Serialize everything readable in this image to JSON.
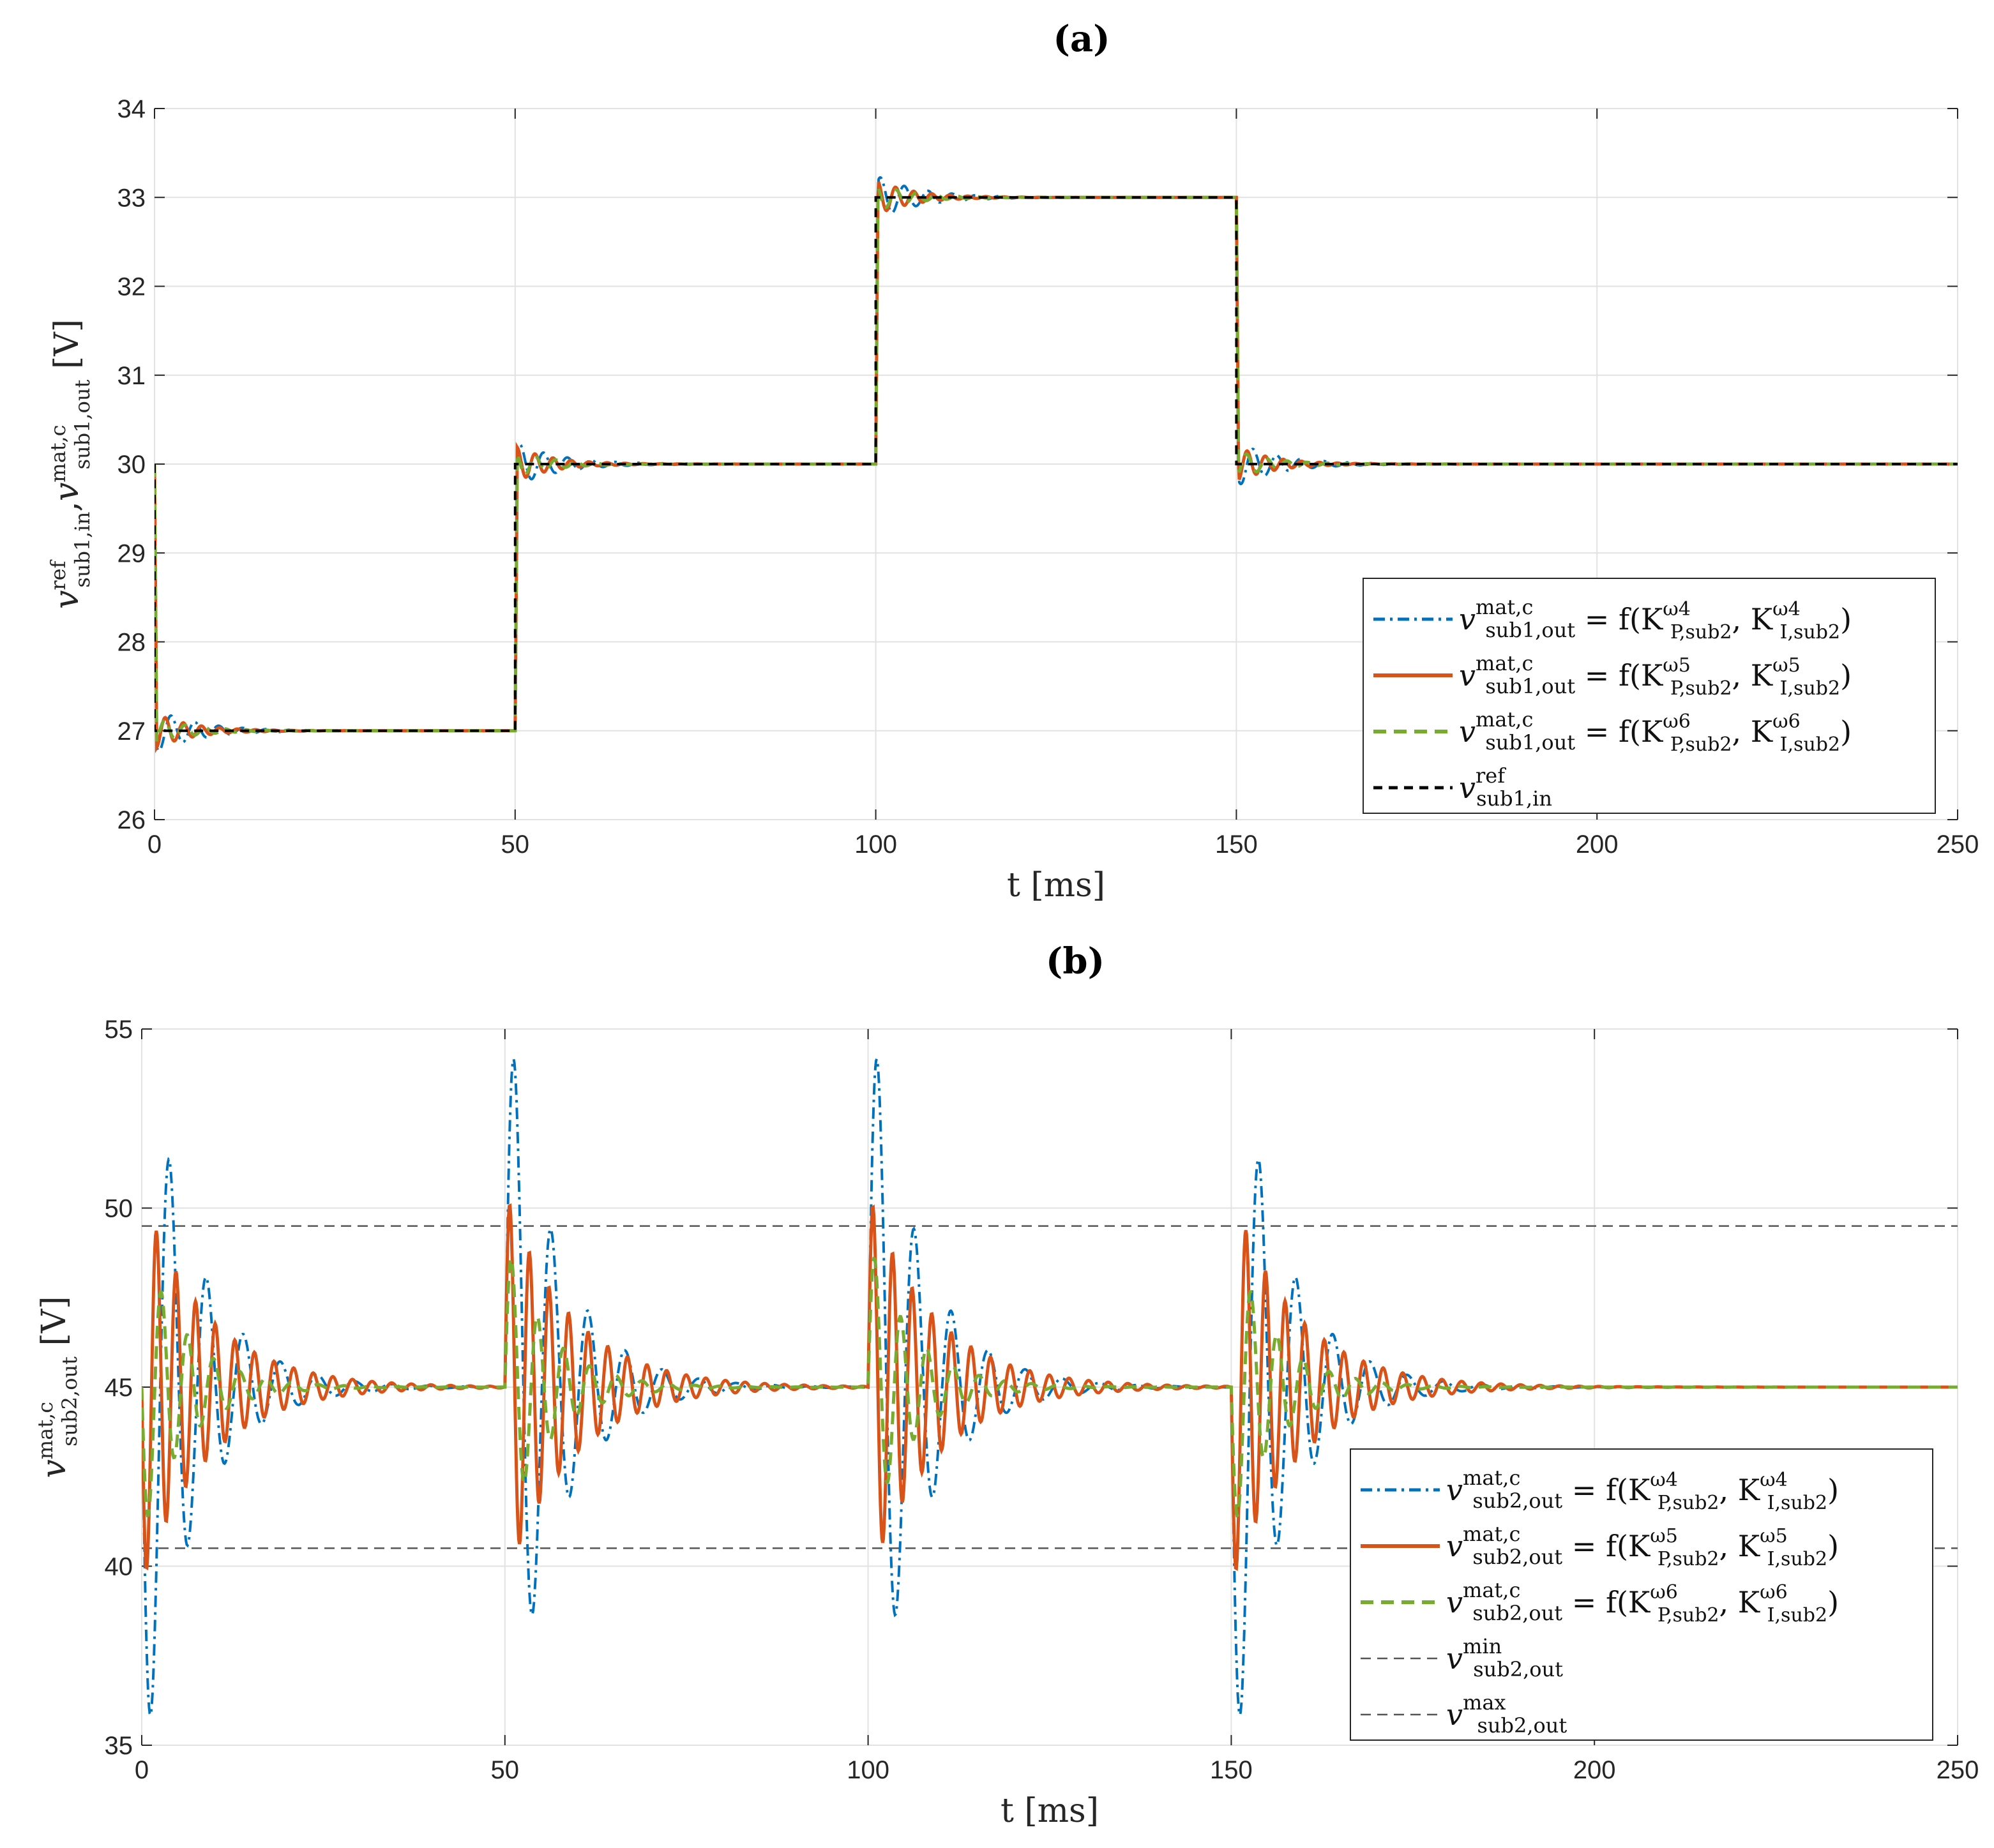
{
  "chart_data": [
    {
      "type": "line",
      "panel_label": "(a)",
      "xlabel": "t [ms]",
      "ylabel": "v_ref_sub1,in, v_mat,c_sub1,out [V]",
      "ylabel_parts": {
        "main": "v",
        "sup1": "ref",
        "sub1": "sub1,in",
        "sep": ",",
        "sup2": "mat,c",
        "sub2": "sub1,out",
        "unit": "[V]"
      },
      "xlim": [
        0,
        250
      ],
      "ylim": [
        26,
        34
      ],
      "xticks": [
        "0",
        "50",
        "100",
        "150",
        "200",
        "250"
      ],
      "yticks": [
        "26",
        "27",
        "28",
        "29",
        "30",
        "31",
        "32",
        "33",
        "34"
      ],
      "grid": true,
      "legend_position": "lower-right",
      "reference_steps": [
        {
          "t_start": 0,
          "t_end": 50,
          "value": 27
        },
        {
          "t_start": 50,
          "t_end": 100,
          "value": 30
        },
        {
          "t_start": 100,
          "t_end": 150,
          "value": 33
        },
        {
          "t_start": 150,
          "t_end": 250,
          "value": 30
        }
      ],
      "initial_value": 30,
      "series": [
        {
          "name": "v_mat,c_sub1,out = f(K_P,sub2^ω4, K_I,sub2^ω4)",
          "legend": {
            "var": "v",
            "sup": "mat,c",
            "sub": "sub1,out",
            "eq": "= f(K",
            "k1sup": "ω4",
            "k1sub": "P,sub2",
            "k2sup": "ω4",
            "k2sub": "I,sub2"
          },
          "color": "#0072BD",
          "style": "dashdot",
          "overshoot": 0.25,
          "decay_ms": 6,
          "period_ms": 3.3
        },
        {
          "name": "v_mat,c_sub1,out = f(K_P,sub2^ω5, K_I,sub2^ω5)",
          "legend": {
            "var": "v",
            "sup": "mat,c",
            "sub": "sub1,out",
            "eq": "= f(K",
            "k1sup": "ω5",
            "k1sub": "P,sub2",
            "k2sup": "ω5",
            "k2sub": "I,sub2"
          },
          "color": "#D95319",
          "style": "solid",
          "overshoot": 0.2,
          "decay_ms": 5,
          "period_ms": 2.5
        },
        {
          "name": "v_mat,c_sub1,out = f(K_P,sub2^ω6, K_I,sub2^ω6)",
          "legend": {
            "var": "v",
            "sup": "mat,c",
            "sub": "sub1,out",
            "eq": "= f(K",
            "k1sup": "ω6",
            "k1sub": "P,sub2",
            "k2sup": "ω6",
            "k2sub": "I,sub2"
          },
          "color": "#77AC30",
          "style": "dashed",
          "overshoot": 0.15,
          "decay_ms": 5,
          "period_ms": 2.8
        },
        {
          "name": "v_ref_sub1,in",
          "legend": {
            "var": "v",
            "sup": "ref",
            "sub": "sub1,in"
          },
          "color": "#000000",
          "style": "dashed-ref"
        }
      ]
    },
    {
      "type": "line",
      "panel_label": "(b)",
      "xlabel": "t [ms]",
      "ylabel": "v_mat,c_sub2,out [V]",
      "ylabel_parts": {
        "main": "v",
        "sup1": "mat,c",
        "sub1": "sub2,out",
        "unit": "[V]"
      },
      "xlim": [
        0,
        250
      ],
      "ylim": [
        35,
        55
      ],
      "xticks": [
        "0",
        "50",
        "100",
        "150",
        "200",
        "250"
      ],
      "yticks": [
        "35",
        "40",
        "45",
        "50",
        "55"
      ],
      "grid": true,
      "legend_position": "lower-right",
      "steady_value": 45,
      "min_limit": 40.5,
      "max_limit": 49.5,
      "disturbances_ms": [
        0,
        50,
        100,
        150
      ],
      "disturbance_signs": [
        -1,
        1,
        1,
        -1
      ],
      "series": [
        {
          "name": "v_mat,c_sub2,out = f(K_P,sub2^ω4, K_I,sub2^ω4)",
          "legend": {
            "var": "v",
            "sup": "mat,c",
            "sub": "sub2,out",
            "eq": "= f(K",
            "k1sup": "ω4",
            "k1sub": "P,sub2",
            "k2sup": "ω4",
            "k2sub": "I,sub2"
          },
          "color": "#0072BD",
          "style": "dashdot",
          "peak": 8.4,
          "decay_ms": 7,
          "period_ms": 5.1
        },
        {
          "name": "v_mat,c_sub2,out = f(K_P,sub2^ω5, K_I,sub2^ω5)",
          "legend": {
            "var": "v",
            "sup": "mat,c",
            "sub": "sub2,out",
            "eq": "= f(K",
            "k1sup": "ω5",
            "k1sub": "P,sub2",
            "k2sup": "ω5",
            "k2sub": "I,sub2"
          },
          "color": "#D95319",
          "style": "solid",
          "peak": 4.2,
          "decay_ms": 9,
          "period_ms": 2.7
        },
        {
          "name": "v_mat,c_sub2,out = f(K_P,sub2^ω6, K_I,sub2^ω6)",
          "legend": {
            "var": "v",
            "sup": "mat,c",
            "sub": "sub2,out",
            "eq": "= f(K",
            "k1sup": "ω6",
            "k1sub": "P,sub2",
            "k2sup": "ω6",
            "k2sub": "I,sub2"
          },
          "color": "#77AC30",
          "style": "dashed",
          "peak": 3.2,
          "decay_ms": 6,
          "period_ms": 3.6
        },
        {
          "name": "v_min_sub2,out",
          "legend": {
            "var": "v",
            "sup": "min",
            "sub": "sub2,out"
          },
          "color": "#555555",
          "style": "thin-dashed"
        },
        {
          "name": "v_max_sub2,out",
          "legend": {
            "var": "v",
            "sup": "max",
            "sub": "sub2,out"
          },
          "color": "#555555",
          "style": "thin-dashed"
        }
      ]
    }
  ]
}
